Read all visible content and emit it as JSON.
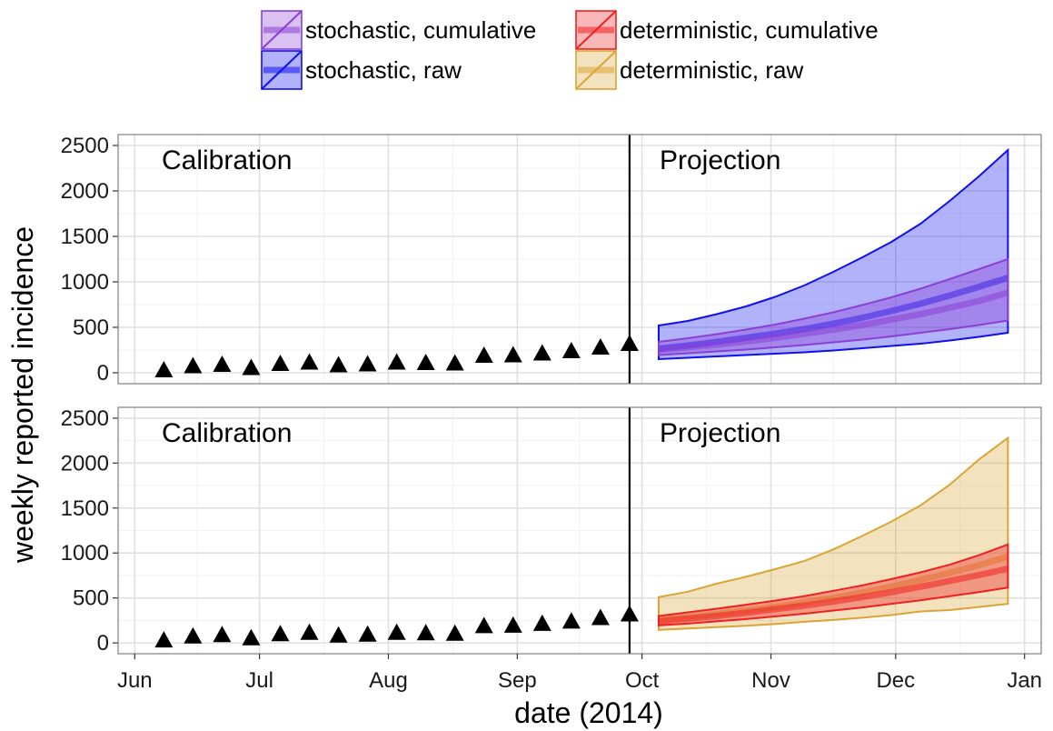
{
  "colors": {
    "stochastic_raw": "#1010ee",
    "stochastic_cumulative": "#8a3fd6",
    "deterministic_raw": "#d9a534",
    "deterministic_cumulative": "#ee2020",
    "observed": "#000000"
  },
  "legend": {
    "stochastic_cumulative": "stochastic, cumulative",
    "deterministic_cumulative": "deterministic, cumulative",
    "stochastic_raw": "stochastic, raw",
    "deterministic_raw": "deterministic, raw"
  },
  "chart_data": {
    "type": "area",
    "xlabel": "date (2014)",
    "ylabel": "weekly reported incidence",
    "xlim": [
      "2014-05-28",
      "2015-01-05"
    ],
    "ylim": [
      -120,
      2620
    ],
    "x_ticks": [
      {
        "date": "2014-06-01",
        "label": "Jun"
      },
      {
        "date": "2014-07-01",
        "label": "Jul"
      },
      {
        "date": "2014-08-01",
        "label": "Aug"
      },
      {
        "date": "2014-09-01",
        "label": "Sep"
      },
      {
        "date": "2014-10-01",
        "label": "Oct"
      },
      {
        "date": "2014-11-01",
        "label": "Nov"
      },
      {
        "date": "2014-12-01",
        "label": "Dec"
      },
      {
        "date": "2015-01-01",
        "label": "Jan"
      }
    ],
    "y_ticks": [
      0,
      500,
      1000,
      1500,
      2000,
      2500
    ],
    "calibration_end": "2014-09-28",
    "grid": true,
    "legend_position": "top",
    "observed": {
      "x": [
        "2014-06-08",
        "2014-06-15",
        "2014-06-22",
        "2014-06-29",
        "2014-07-06",
        "2014-07-13",
        "2014-07-20",
        "2014-07-27",
        "2014-08-03",
        "2014-08-10",
        "2014-08-17",
        "2014-08-24",
        "2014-08-31",
        "2014-09-07",
        "2014-09-14",
        "2014-09-21",
        "2014-09-28"
      ],
      "y": [
        30,
        75,
        90,
        55,
        100,
        115,
        85,
        95,
        115,
        110,
        105,
        190,
        195,
        215,
        240,
        280,
        320
      ]
    },
    "projection_x": [
      "2014-10-05",
      "2014-10-12",
      "2014-10-19",
      "2014-10-26",
      "2014-11-02",
      "2014-11-09",
      "2014-11-16",
      "2014-11-23",
      "2014-11-30",
      "2014-12-07",
      "2014-12-14",
      "2014-12-21",
      "2014-12-28"
    ],
    "panels": [
      {
        "phase_labels": [
          "Calibration",
          "Projection"
        ],
        "bands": [
          {
            "name": "stochastic, raw",
            "key": "stochastic_raw",
            "alpha": 0.32,
            "lower": [
              150,
              165,
              180,
              195,
              210,
              225,
              245,
              270,
              295,
              320,
              355,
              395,
              440
            ],
            "median": [
              265,
              300,
              340,
              385,
              430,
              480,
              540,
              605,
              680,
              760,
              850,
              945,
              1045
            ],
            "upper": [
              520,
              570,
              645,
              730,
              835,
              960,
              1110,
              1270,
              1440,
              1640,
              1890,
              2160,
              2450
            ]
          },
          {
            "name": "stochastic, cumulative",
            "key": "stochastic_cumulative",
            "alpha": 0.38,
            "lower": [
              195,
              215,
              235,
              255,
              280,
              305,
              335,
              365,
              400,
              440,
              480,
              525,
              575
            ],
            "median": [
              250,
              280,
              310,
              345,
              385,
              430,
              475,
              525,
              585,
              645,
              715,
              790,
              880
            ],
            "upper": [
              340,
              380,
              425,
              475,
              530,
              595,
              665,
              745,
              830,
              925,
              1030,
              1140,
              1250
            ]
          }
        ]
      },
      {
        "phase_labels": [
          "Calibration",
          "Projection"
        ],
        "bands": [
          {
            "name": "deterministic, raw",
            "key": "deterministic_raw",
            "alpha": 0.32,
            "lower": [
              145,
              160,
              175,
              190,
              210,
              235,
              255,
              280,
              310,
              350,
              365,
              400,
              435
            ],
            "median": [
              255,
              285,
              320,
              360,
              400,
              450,
              500,
              560,
              625,
              700,
              780,
              865,
              960
            ],
            "upper": [
              510,
              570,
              660,
              735,
              820,
              910,
              1040,
              1190,
              1350,
              1530,
              1760,
              2040,
              2280
            ]
          },
          {
            "name": "deterministic, cumulative",
            "key": "deterministic_cumulative",
            "alpha": 0.38,
            "lower": [
              195,
              215,
              240,
              265,
              295,
              325,
              360,
              395,
              435,
              475,
              520,
              565,
              615
            ],
            "median": [
              240,
              270,
              300,
              335,
              375,
              415,
              460,
              510,
              565,
              625,
              690,
              755,
              825
            ],
            "upper": [
              300,
              340,
              380,
              425,
              470,
              520,
              580,
              640,
              710,
              785,
              870,
              975,
              1095
            ]
          }
        ]
      }
    ]
  }
}
